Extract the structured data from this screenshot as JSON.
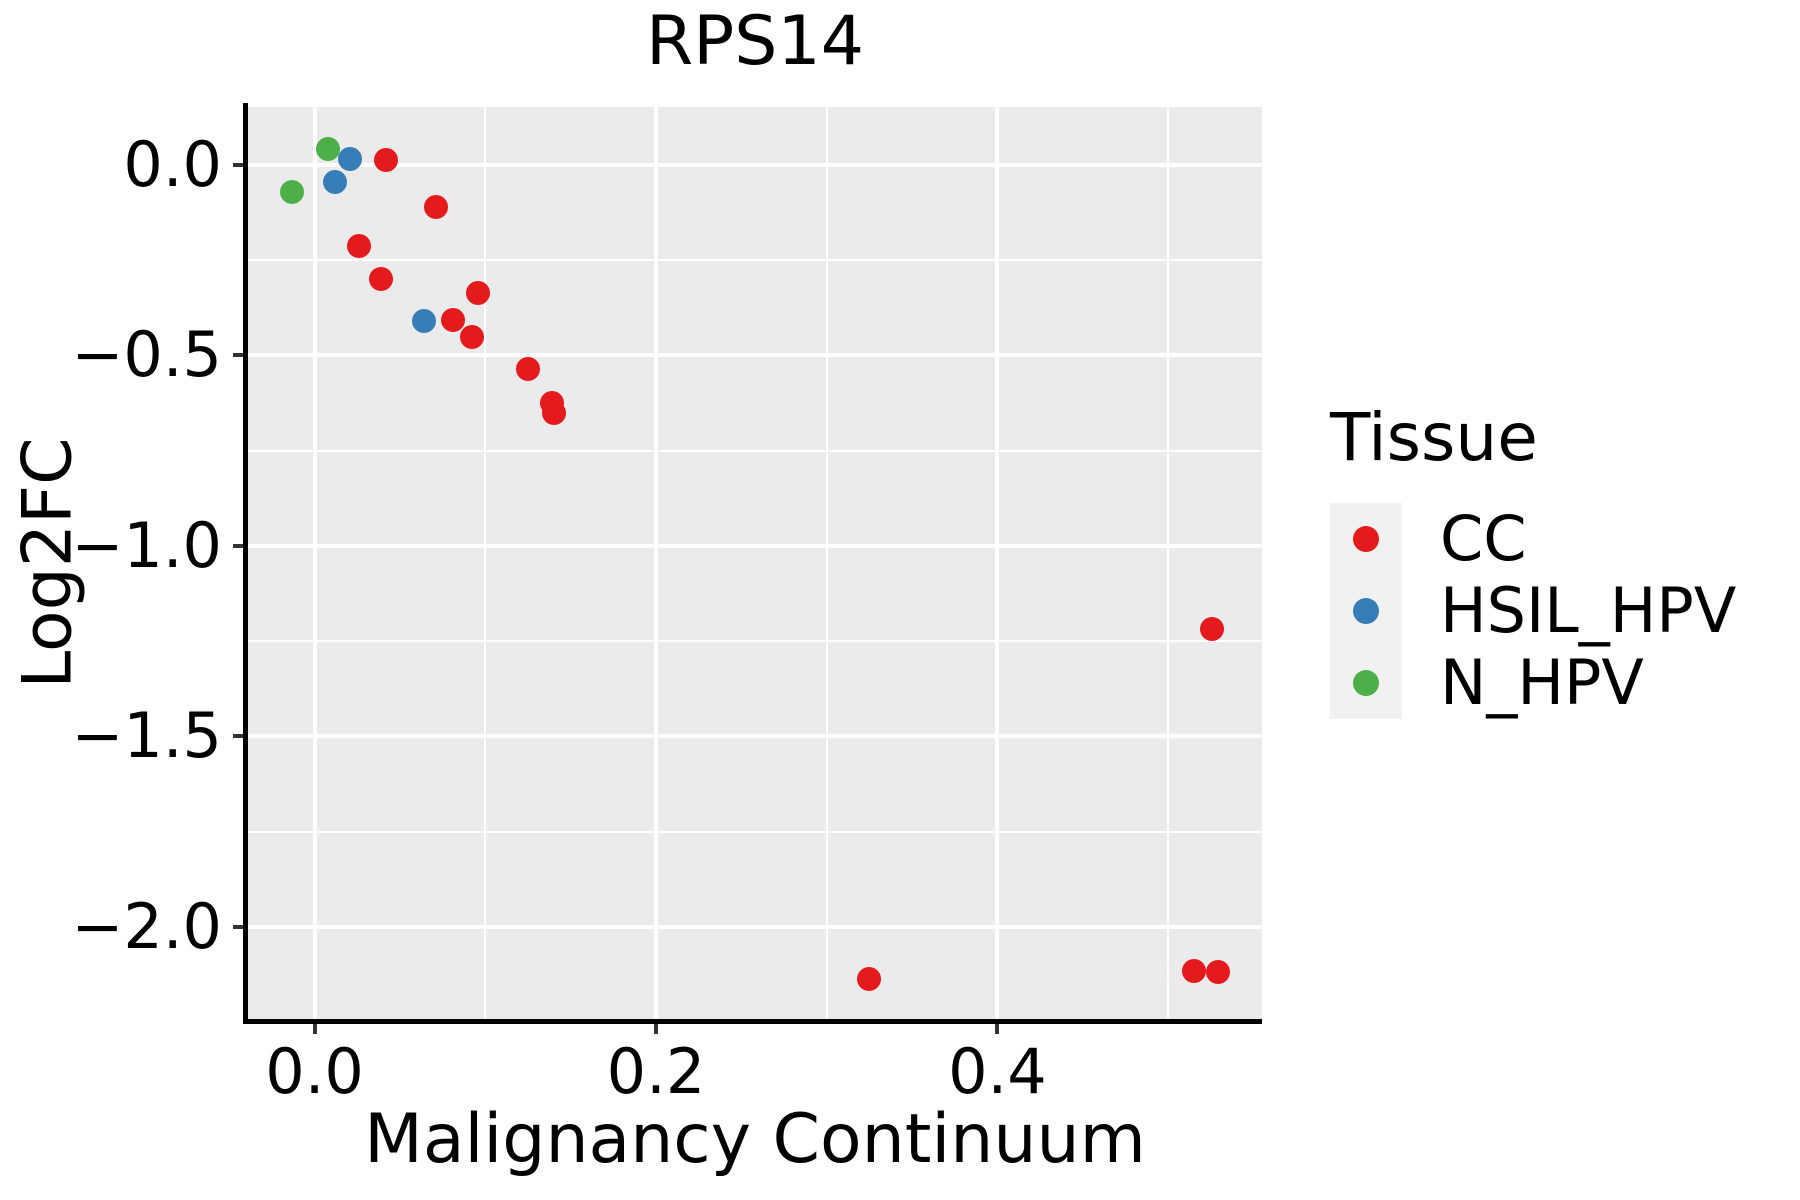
{
  "chart_data": {
    "type": "scatter",
    "title": "RPS14",
    "xlabel": "Malignancy Continuum",
    "ylabel": "Log2FC",
    "xlim": [
      -0.039,
      0.555
    ],
    "ylim": [
      -2.242,
      0.152
    ],
    "grid": true,
    "legend_position": "right",
    "x_major_ticks": [
      0.0,
      0.2,
      0.4
    ],
    "x_major_labels": [
      "0.0",
      "0.2",
      "0.4"
    ],
    "x_minor_ticks": [
      0.1,
      0.3,
      0.5
    ],
    "y_major_ticks": [
      0.0,
      -0.5,
      -1.0,
      -1.5,
      -2.0
    ],
    "y_major_labels": [
      "0.0",
      "−0.5",
      "−1.0",
      "−1.5",
      "−2.0"
    ],
    "y_minor_ticks": [
      -0.25,
      -0.75,
      -1.25,
      -1.75
    ],
    "series": [
      {
        "name": "CC",
        "color": "#E41A1C",
        "points": [
          [
            0.042,
            0.013
          ],
          [
            0.071,
            -0.111
          ],
          [
            0.026,
            -0.213
          ],
          [
            0.039,
            -0.3
          ],
          [
            0.096,
            -0.335
          ],
          [
            0.081,
            -0.407
          ],
          [
            0.092,
            -0.452
          ],
          [
            0.125,
            -0.536
          ],
          [
            0.139,
            -0.624
          ],
          [
            0.14,
            -0.65
          ],
          [
            0.526,
            -1.219
          ],
          [
            0.325,
            -2.137
          ],
          [
            0.515,
            -2.115
          ],
          [
            0.529,
            -2.118
          ]
        ]
      },
      {
        "name": "HSIL_HPV",
        "color": "#377EB8",
        "points": [
          [
            0.021,
            0.015
          ],
          [
            0.012,
            -0.044
          ],
          [
            0.064,
            -0.411
          ]
        ]
      },
      {
        "name": "N_HPV",
        "color": "#4DAF4A",
        "points": [
          [
            0.008,
            0.041
          ],
          [
            -0.013,
            -0.07
          ]
        ]
      }
    ]
  },
  "legend": {
    "title": "Tissue",
    "items": [
      {
        "label": "CC",
        "color": "#E41A1C"
      },
      {
        "label": "HSIL_HPV",
        "color": "#377EB8"
      },
      {
        "label": "N_HPV",
        "color": "#4DAF4A"
      }
    ]
  },
  "colors": {
    "panel_background": "#EBEBEB",
    "gridline": "#FFFFFF",
    "axis_line": "#000000",
    "tick_mark": "#333333",
    "text": "#000000",
    "legend_key_fill": "#F1F1F1"
  }
}
